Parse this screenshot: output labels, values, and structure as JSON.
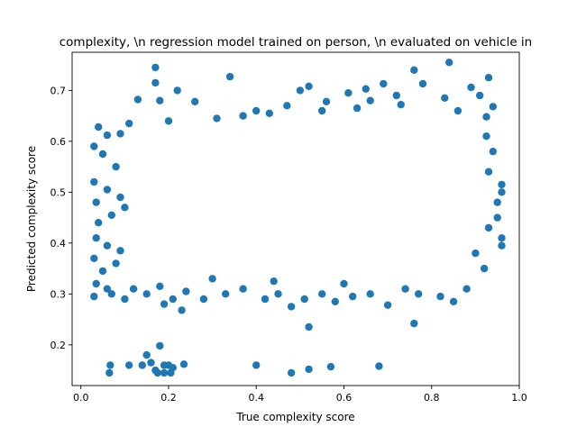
{
  "chart_data": {
    "type": "scatter",
    "title": "complexity, \\n regression model trained on person, \\n evaluated on vehicle in",
    "xlabel": "True complexity score",
    "ylabel": "Predicted complexity score",
    "xlim": [
      -0.02,
      1.0
    ],
    "ylim": [
      0.12,
      0.775
    ],
    "xticks": [
      {
        "value": 0.0,
        "label": "0.0"
      },
      {
        "value": 0.2,
        "label": "0.2"
      },
      {
        "value": 0.4,
        "label": "0.4"
      },
      {
        "value": 0.6,
        "label": "0.6"
      },
      {
        "value": 0.8,
        "label": "0.8"
      },
      {
        "value": 1.0,
        "label": "1.0"
      }
    ],
    "yticks": [
      {
        "value": 0.2,
        "label": "0.2"
      },
      {
        "value": 0.3,
        "label": "0.3"
      },
      {
        "value": 0.4,
        "label": "0.4"
      },
      {
        "value": 0.5,
        "label": "0.5"
      },
      {
        "value": 0.6,
        "label": "0.6"
      },
      {
        "value": 0.7,
        "label": "0.7"
      }
    ],
    "grid": false,
    "marker_color": "#1f77b4",
    "series": [
      {
        "points": [
          [
            0.17,
            0.745
          ],
          [
            0.84,
            0.755
          ],
          [
            0.76,
            0.74
          ],
          [
            0.34,
            0.727
          ],
          [
            0.93,
            0.725
          ],
          [
            0.17,
            0.715
          ],
          [
            0.5,
            0.7
          ],
          [
            0.52,
            0.708
          ],
          [
            0.22,
            0.7
          ],
          [
            0.65,
            0.703
          ],
          [
            0.69,
            0.713
          ],
          [
            0.78,
            0.713
          ],
          [
            0.89,
            0.706
          ],
          [
            0.91,
            0.69
          ],
          [
            0.18,
            0.68
          ],
          [
            0.26,
            0.678
          ],
          [
            0.13,
            0.682
          ],
          [
            0.56,
            0.678
          ],
          [
            0.61,
            0.695
          ],
          [
            0.72,
            0.69
          ],
          [
            0.47,
            0.67
          ],
          [
            0.4,
            0.66
          ],
          [
            0.66,
            0.68
          ],
          [
            0.83,
            0.685
          ],
          [
            0.94,
            0.668
          ],
          [
            0.04,
            0.628
          ],
          [
            0.06,
            0.612
          ],
          [
            0.09,
            0.615
          ],
          [
            0.11,
            0.635
          ],
          [
            0.2,
            0.64
          ],
          [
            0.31,
            0.645
          ],
          [
            0.37,
            0.65
          ],
          [
            0.43,
            0.655
          ],
          [
            0.55,
            0.66
          ],
          [
            0.63,
            0.665
          ],
          [
            0.73,
            0.672
          ],
          [
            0.86,
            0.66
          ],
          [
            0.925,
            0.648
          ],
          [
            0.03,
            0.59
          ],
          [
            0.05,
            0.575
          ],
          [
            0.08,
            0.55
          ],
          [
            0.03,
            0.52
          ],
          [
            0.06,
            0.505
          ],
          [
            0.09,
            0.49
          ],
          [
            0.035,
            0.48
          ],
          [
            0.04,
            0.44
          ],
          [
            0.07,
            0.455
          ],
          [
            0.1,
            0.47
          ],
          [
            0.035,
            0.41
          ],
          [
            0.06,
            0.395
          ],
          [
            0.09,
            0.385
          ],
          [
            0.03,
            0.37
          ],
          [
            0.05,
            0.345
          ],
          [
            0.08,
            0.36
          ],
          [
            0.035,
            0.32
          ],
          [
            0.06,
            0.31
          ],
          [
            0.03,
            0.295
          ],
          [
            0.07,
            0.3
          ],
          [
            0.1,
            0.29
          ],
          [
            0.12,
            0.31
          ],
          [
            0.15,
            0.3
          ],
          [
            0.18,
            0.315
          ],
          [
            0.21,
            0.29
          ],
          [
            0.24,
            0.305
          ],
          [
            0.19,
            0.28
          ],
          [
            0.23,
            0.268
          ],
          [
            0.28,
            0.29
          ],
          [
            0.33,
            0.3
          ],
          [
            0.37,
            0.31
          ],
          [
            0.42,
            0.29
          ],
          [
            0.45,
            0.3
          ],
          [
            0.48,
            0.275
          ],
          [
            0.51,
            0.29
          ],
          [
            0.55,
            0.3
          ],
          [
            0.58,
            0.285
          ],
          [
            0.62,
            0.295
          ],
          [
            0.66,
            0.3
          ],
          [
            0.7,
            0.278
          ],
          [
            0.74,
            0.31
          ],
          [
            0.77,
            0.3
          ],
          [
            0.82,
            0.295
          ],
          [
            0.85,
            0.285
          ],
          [
            0.88,
            0.31
          ],
          [
            0.6,
            0.32
          ],
          [
            0.44,
            0.325
          ],
          [
            0.3,
            0.33
          ],
          [
            0.52,
            0.235
          ],
          [
            0.76,
            0.242
          ],
          [
            0.96,
            0.515
          ],
          [
            0.96,
            0.5
          ],
          [
            0.95,
            0.45
          ],
          [
            0.96,
            0.41
          ],
          [
            0.96,
            0.395
          ],
          [
            0.93,
            0.43
          ],
          [
            0.92,
            0.35
          ],
          [
            0.9,
            0.38
          ],
          [
            0.93,
            0.54
          ],
          [
            0.94,
            0.58
          ],
          [
            0.925,
            0.61
          ],
          [
            0.95,
            0.48
          ],
          [
            0.067,
            0.16
          ],
          [
            0.065,
            0.145
          ],
          [
            0.11,
            0.16
          ],
          [
            0.14,
            0.16
          ],
          [
            0.15,
            0.18
          ],
          [
            0.16,
            0.165
          ],
          [
            0.17,
            0.15
          ],
          [
            0.175,
            0.145
          ],
          [
            0.18,
            0.198
          ],
          [
            0.19,
            0.16
          ],
          [
            0.19,
            0.145
          ],
          [
            0.2,
            0.16
          ],
          [
            0.205,
            0.145
          ],
          [
            0.21,
            0.155
          ],
          [
            0.235,
            0.162
          ],
          [
            0.4,
            0.16
          ],
          [
            0.48,
            0.145
          ],
          [
            0.52,
            0.152
          ],
          [
            0.57,
            0.157
          ],
          [
            0.68,
            0.158
          ]
        ]
      }
    ]
  }
}
